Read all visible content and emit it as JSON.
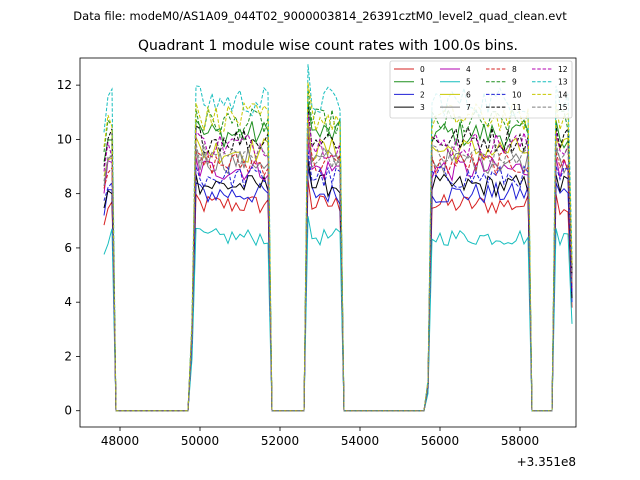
{
  "chart_data": {
    "type": "line",
    "suptitle": "Data file: modeM0/AS1A09_044T02_9000003814_26391cztM0_level2_quad_clean.evt",
    "title": "Quadrant 1 module wise count rates with 100.0s bins.",
    "xlabel": "",
    "ylabel": "",
    "x_offset_text": "+3.351e8",
    "xlim": [
      47000,
      59400
    ],
    "ylim": [
      -0.6,
      13.0
    ],
    "xticks": [
      48000,
      50000,
      52000,
      54000,
      56000,
      58000
    ],
    "xtick_labels": [
      "48000",
      "50000",
      "52000",
      "54000",
      "56000",
      "58000"
    ],
    "yticks": [
      0,
      2,
      4,
      6,
      8,
      10,
      12
    ],
    "ytick_labels": [
      "0",
      "2",
      "4",
      "6",
      "8",
      "10",
      "12"
    ],
    "grid": false,
    "legend_position": "top-right",
    "segments": [
      {
        "start": 47600,
        "end": 47800
      },
      {
        "start": 49800,
        "end": 51700
      },
      {
        "start": 52700,
        "end": 53500
      },
      {
        "start": 55700,
        "end": 58200
      },
      {
        "start": 58900,
        "end": 59300
      }
    ],
    "gap_value": 0,
    "series": [
      {
        "name": "0",
        "color": "#d62020",
        "dash": "solid",
        "level": 7.6
      },
      {
        "name": "1",
        "color": "#1f8f1f",
        "dash": "solid",
        "level": 10.2
      },
      {
        "name": "2",
        "color": "#1f1fd6",
        "dash": "solid",
        "level": 8.0
      },
      {
        "name": "3",
        "color": "#000000",
        "dash": "solid",
        "level": 8.3
      },
      {
        "name": "4",
        "color": "#b000b0",
        "dash": "solid",
        "level": 8.9
      },
      {
        "name": "5",
        "color": "#17bebe",
        "dash": "solid",
        "level": 6.4
      },
      {
        "name": "6",
        "color": "#c8c800",
        "dash": "solid",
        "level": 9.6
      },
      {
        "name": "7",
        "color": "#7f7f7f",
        "dash": "solid",
        "level": 9.2
      },
      {
        "name": "8",
        "color": "#d62020",
        "dash": "dashed",
        "level": 9.1
      },
      {
        "name": "9",
        "color": "#1f8f1f",
        "dash": "dashed",
        "level": 10.6
      },
      {
        "name": "10",
        "color": "#1f1fd6",
        "dash": "dashed",
        "level": 8.6
      },
      {
        "name": "11",
        "color": "#000000",
        "dash": "dashed",
        "level": 10.0
      },
      {
        "name": "12",
        "color": "#b000b0",
        "dash": "dashed",
        "level": 9.8
      },
      {
        "name": "13",
        "color": "#17bebe",
        "dash": "dashed",
        "level": 11.4
      },
      {
        "name": "14",
        "color": "#c8c800",
        "dash": "dashed",
        "level": 10.8
      },
      {
        "name": "15",
        "color": "#7f7f7f",
        "dash": "dashed",
        "level": 9.4
      }
    ]
  }
}
